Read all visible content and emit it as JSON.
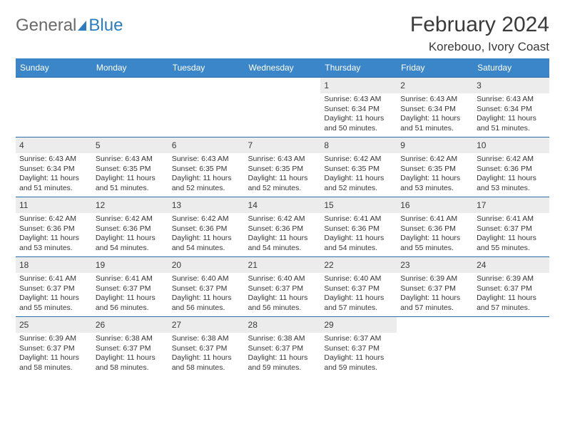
{
  "logo": {
    "general": "General",
    "blue": "Blue"
  },
  "title": "February 2024",
  "location": "Korebouo, Ivory Coast",
  "weekdays": [
    "Sunday",
    "Monday",
    "Tuesday",
    "Wednesday",
    "Thursday",
    "Friday",
    "Saturday"
  ],
  "colors": {
    "header_bg": "#3a86c8",
    "header_text": "#ffffff",
    "daynum_bg": "#ececec",
    "cell_border": "#2a6aa8",
    "text": "#363636",
    "logo_gray": "#6a6a6a",
    "logo_blue": "#2a7dc0"
  },
  "layout": {
    "rows": 5,
    "cols": 7,
    "first_weekday_index": 4,
    "days_in_month": 29
  },
  "days": {
    "1": {
      "sunrise": "Sunrise: 6:43 AM",
      "sunset": "Sunset: 6:34 PM",
      "daylight": "Daylight: 11 hours and 50 minutes."
    },
    "2": {
      "sunrise": "Sunrise: 6:43 AM",
      "sunset": "Sunset: 6:34 PM",
      "daylight": "Daylight: 11 hours and 51 minutes."
    },
    "3": {
      "sunrise": "Sunrise: 6:43 AM",
      "sunset": "Sunset: 6:34 PM",
      "daylight": "Daylight: 11 hours and 51 minutes."
    },
    "4": {
      "sunrise": "Sunrise: 6:43 AM",
      "sunset": "Sunset: 6:34 PM",
      "daylight": "Daylight: 11 hours and 51 minutes."
    },
    "5": {
      "sunrise": "Sunrise: 6:43 AM",
      "sunset": "Sunset: 6:35 PM",
      "daylight": "Daylight: 11 hours and 51 minutes."
    },
    "6": {
      "sunrise": "Sunrise: 6:43 AM",
      "sunset": "Sunset: 6:35 PM",
      "daylight": "Daylight: 11 hours and 52 minutes."
    },
    "7": {
      "sunrise": "Sunrise: 6:43 AM",
      "sunset": "Sunset: 6:35 PM",
      "daylight": "Daylight: 11 hours and 52 minutes."
    },
    "8": {
      "sunrise": "Sunrise: 6:42 AM",
      "sunset": "Sunset: 6:35 PM",
      "daylight": "Daylight: 11 hours and 52 minutes."
    },
    "9": {
      "sunrise": "Sunrise: 6:42 AM",
      "sunset": "Sunset: 6:35 PM",
      "daylight": "Daylight: 11 hours and 53 minutes."
    },
    "10": {
      "sunrise": "Sunrise: 6:42 AM",
      "sunset": "Sunset: 6:36 PM",
      "daylight": "Daylight: 11 hours and 53 minutes."
    },
    "11": {
      "sunrise": "Sunrise: 6:42 AM",
      "sunset": "Sunset: 6:36 PM",
      "daylight": "Daylight: 11 hours and 53 minutes."
    },
    "12": {
      "sunrise": "Sunrise: 6:42 AM",
      "sunset": "Sunset: 6:36 PM",
      "daylight": "Daylight: 11 hours and 54 minutes."
    },
    "13": {
      "sunrise": "Sunrise: 6:42 AM",
      "sunset": "Sunset: 6:36 PM",
      "daylight": "Daylight: 11 hours and 54 minutes."
    },
    "14": {
      "sunrise": "Sunrise: 6:42 AM",
      "sunset": "Sunset: 6:36 PM",
      "daylight": "Daylight: 11 hours and 54 minutes."
    },
    "15": {
      "sunrise": "Sunrise: 6:41 AM",
      "sunset": "Sunset: 6:36 PM",
      "daylight": "Daylight: 11 hours and 54 minutes."
    },
    "16": {
      "sunrise": "Sunrise: 6:41 AM",
      "sunset": "Sunset: 6:36 PM",
      "daylight": "Daylight: 11 hours and 55 minutes."
    },
    "17": {
      "sunrise": "Sunrise: 6:41 AM",
      "sunset": "Sunset: 6:37 PM",
      "daylight": "Daylight: 11 hours and 55 minutes."
    },
    "18": {
      "sunrise": "Sunrise: 6:41 AM",
      "sunset": "Sunset: 6:37 PM",
      "daylight": "Daylight: 11 hours and 55 minutes."
    },
    "19": {
      "sunrise": "Sunrise: 6:41 AM",
      "sunset": "Sunset: 6:37 PM",
      "daylight": "Daylight: 11 hours and 56 minutes."
    },
    "20": {
      "sunrise": "Sunrise: 6:40 AM",
      "sunset": "Sunset: 6:37 PM",
      "daylight": "Daylight: 11 hours and 56 minutes."
    },
    "21": {
      "sunrise": "Sunrise: 6:40 AM",
      "sunset": "Sunset: 6:37 PM",
      "daylight": "Daylight: 11 hours and 56 minutes."
    },
    "22": {
      "sunrise": "Sunrise: 6:40 AM",
      "sunset": "Sunset: 6:37 PM",
      "daylight": "Daylight: 11 hours and 57 minutes."
    },
    "23": {
      "sunrise": "Sunrise: 6:39 AM",
      "sunset": "Sunset: 6:37 PM",
      "daylight": "Daylight: 11 hours and 57 minutes."
    },
    "24": {
      "sunrise": "Sunrise: 6:39 AM",
      "sunset": "Sunset: 6:37 PM",
      "daylight": "Daylight: 11 hours and 57 minutes."
    },
    "25": {
      "sunrise": "Sunrise: 6:39 AM",
      "sunset": "Sunset: 6:37 PM",
      "daylight": "Daylight: 11 hours and 58 minutes."
    },
    "26": {
      "sunrise": "Sunrise: 6:38 AM",
      "sunset": "Sunset: 6:37 PM",
      "daylight": "Daylight: 11 hours and 58 minutes."
    },
    "27": {
      "sunrise": "Sunrise: 6:38 AM",
      "sunset": "Sunset: 6:37 PM",
      "daylight": "Daylight: 11 hours and 58 minutes."
    },
    "28": {
      "sunrise": "Sunrise: 6:38 AM",
      "sunset": "Sunset: 6:37 PM",
      "daylight": "Daylight: 11 hours and 59 minutes."
    },
    "29": {
      "sunrise": "Sunrise: 6:37 AM",
      "sunset": "Sunset: 6:37 PM",
      "daylight": "Daylight: 11 hours and 59 minutes."
    }
  }
}
